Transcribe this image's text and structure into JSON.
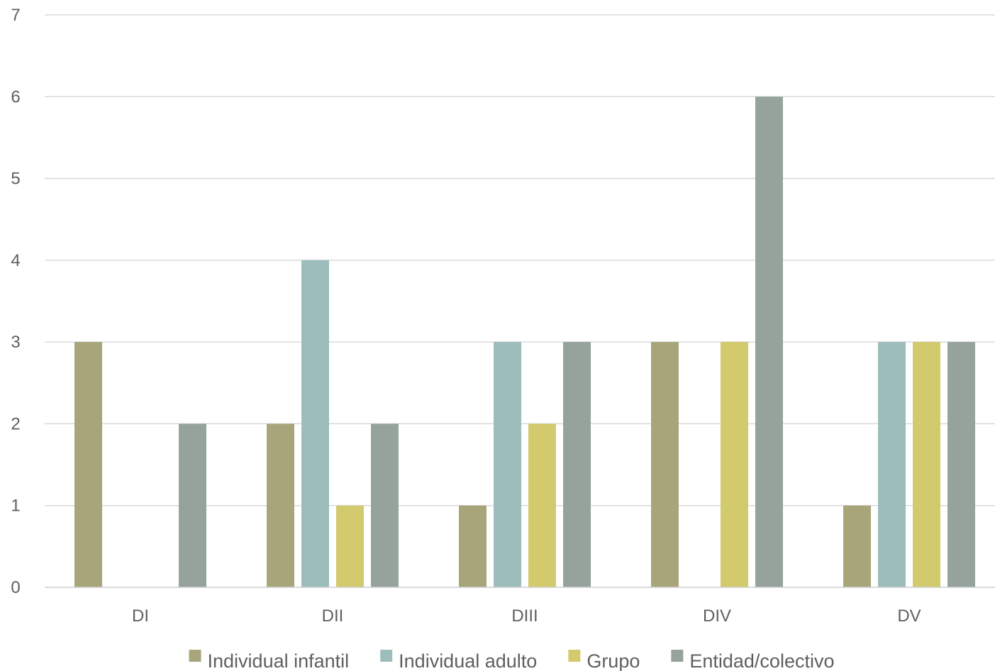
{
  "chart_data": {
    "type": "bar",
    "title": "",
    "xlabel": "",
    "ylabel": "",
    "categories": [
      "DI",
      "DII",
      "DIII",
      "DIV",
      "DV"
    ],
    "series": [
      {
        "name": "Individual infantil",
        "color": "#a8a57b",
        "values": [
          3,
          2,
          1,
          3,
          1
        ]
      },
      {
        "name": "Individual adulto",
        "color": "#9dbdbc",
        "values": [
          0,
          4,
          3,
          0,
          3
        ]
      },
      {
        "name": "Grupo",
        "color": "#d2ca6c",
        "values": [
          0,
          1,
          2,
          3,
          3
        ]
      },
      {
        "name": "Entidad/colectivo",
        "color": "#95a39b",
        "values": [
          2,
          2,
          3,
          6,
          3
        ]
      }
    ],
    "ylim": [
      0,
      7
    ],
    "yticks": [
      0,
      1,
      2,
      3,
      4,
      5,
      6,
      7
    ],
    "grid": true,
    "legend_position": "bottom"
  }
}
